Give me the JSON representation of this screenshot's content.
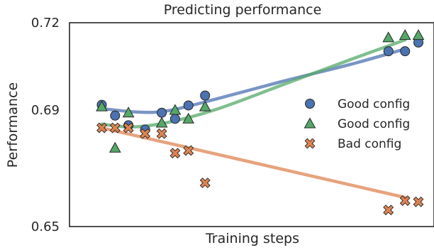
{
  "chart_data": {
    "type": "scatter",
    "title": "Predicting performance",
    "xlabel": "Training steps",
    "ylabel": "Performance",
    "xlim": [
      0,
      100
    ],
    "ylim": [
      0.65,
      0.72
    ],
    "yticks": [
      "0.65",
      "0.69",
      "0.72"
    ],
    "ytick_values": [
      0.65,
      0.69,
      0.72
    ],
    "grid": false,
    "legend_position": "right",
    "series": [
      {
        "name": "Good config",
        "marker": "circle",
        "color": "#4c72b0",
        "points": [
          [
            5,
            0.6918
          ],
          [
            9,
            0.6881
          ],
          [
            13,
            0.6848
          ],
          [
            18,
            0.6833
          ],
          [
            23,
            0.6891
          ],
          [
            27,
            0.687
          ],
          [
            31,
            0.6916
          ],
          [
            36,
            0.695
          ],
          [
            91,
            0.7102
          ],
          [
            96,
            0.7102
          ],
          [
            100,
            0.7132
          ]
        ]
      },
      {
        "name": "Good config",
        "marker": "triangle",
        "color": "#55a868",
        "points": [
          [
            5,
            0.6912
          ],
          [
            9,
            0.677
          ],
          [
            13,
            0.6891
          ],
          [
            23,
            0.6856
          ],
          [
            27,
            0.69
          ],
          [
            31,
            0.687
          ],
          [
            36,
            0.6912
          ],
          [
            91,
            0.7149
          ],
          [
            96,
            0.7157
          ],
          [
            100,
            0.7157
          ]
        ]
      },
      {
        "name": "Bad config",
        "marker": "x",
        "color": "#dd8452",
        "points": [
          [
            5,
            0.6839
          ],
          [
            9,
            0.6839
          ],
          [
            13,
            0.6839
          ],
          [
            18,
            0.6819
          ],
          [
            23,
            0.6819
          ],
          [
            27,
            0.6752
          ],
          [
            31,
            0.6761
          ],
          [
            36,
            0.665
          ],
          [
            91,
            0.6557
          ],
          [
            96,
            0.6589
          ],
          [
            100,
            0.6585
          ]
        ]
      }
    ],
    "trend_lines": [
      {
        "series": "Good config",
        "color": "#4c72b0",
        "points": [
          [
            5,
            0.6905
          ],
          [
            16,
            0.6893
          ],
          [
            25,
            0.6898
          ],
          [
            40,
            0.694
          ],
          [
            60,
            0.7001
          ],
          [
            80,
            0.7058
          ],
          [
            96,
            0.711
          ]
        ]
      },
      {
        "series": "Good config",
        "color": "#55a868",
        "points": [
          [
            5,
            0.6852
          ],
          [
            14,
            0.6842
          ],
          [
            25,
            0.6858
          ],
          [
            40,
            0.6905
          ],
          [
            60,
            0.699
          ],
          [
            80,
            0.7075
          ],
          [
            96,
            0.7141
          ]
        ]
      },
      {
        "series": "Bad config",
        "color": "#dd8452",
        "points": [
          [
            5,
            0.6839
          ],
          [
            96,
            0.66
          ]
        ]
      }
    ]
  }
}
